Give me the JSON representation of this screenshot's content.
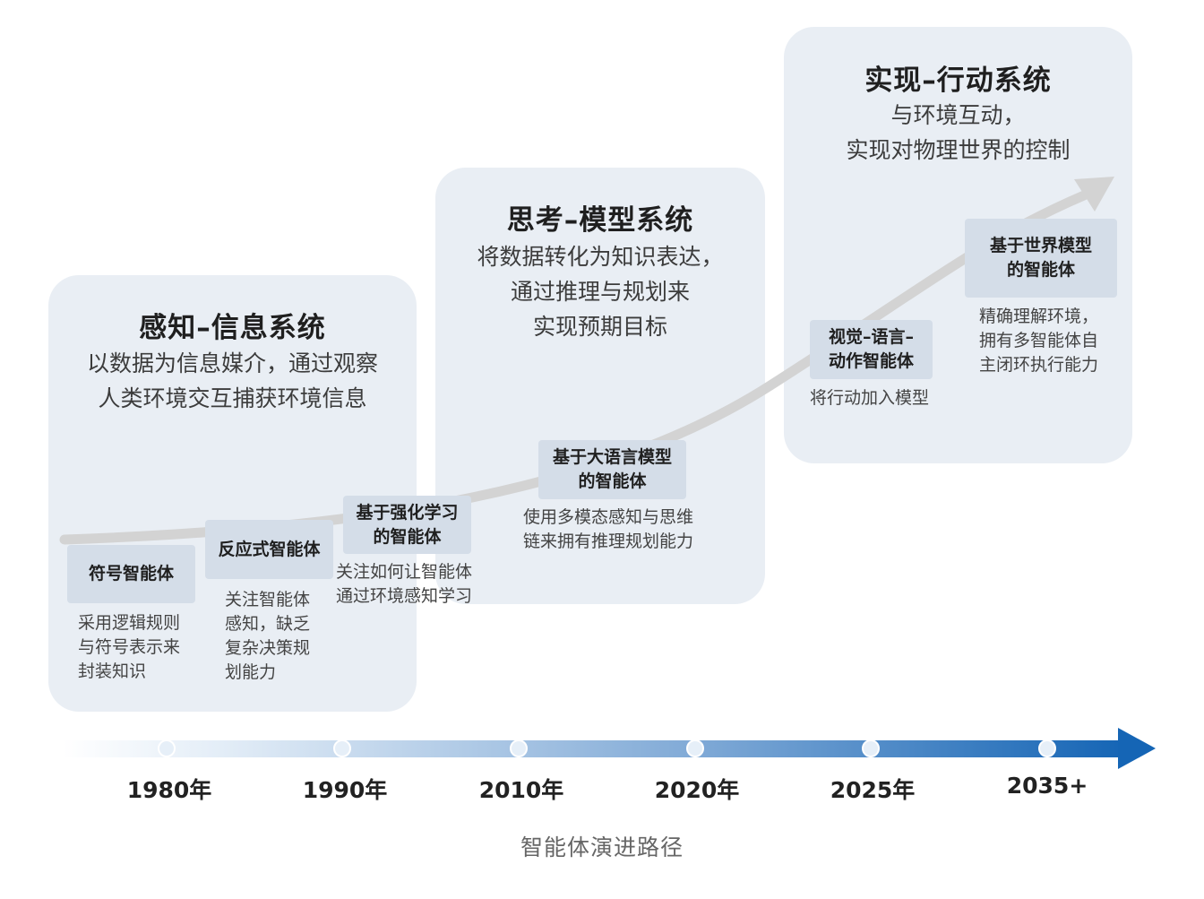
{
  "stages": [
    {
      "title": "感知–信息系统",
      "desc_lines": [
        "以数据为信息媒介，通过观察",
        "人类环境交互捕获环境信息"
      ]
    },
    {
      "title": "思考–模型系统",
      "desc_lines": [
        "将数据转化为知识表达，",
        "通过推理与规划来",
        "实现预期目标"
      ]
    },
    {
      "title": "实现–行动系统",
      "desc_lines": [
        "与环境互动，",
        "实现对物理世界的控制"
      ]
    }
  ],
  "agents": [
    {
      "name_lines": [
        "符号智能体"
      ],
      "desc_lines": [
        "采用逻辑规则",
        "与符号表示来",
        "封装知识"
      ]
    },
    {
      "name_lines": [
        "反应式智能体"
      ],
      "desc_lines": [
        "关注智能体",
        "感知，缺乏",
        "复杂决策规",
        "划能力"
      ]
    },
    {
      "name_lines": [
        "基于强化学习",
        "的智能体"
      ],
      "desc_lines": [
        "关注如何让智能体",
        "通过环境感知学习"
      ]
    },
    {
      "name_lines": [
        "基于大语言模型",
        "的智能体"
      ],
      "desc_lines": [
        "使用多模态感知与思维",
        "链来拥有推理规划能力"
      ]
    },
    {
      "name_lines": [
        "视觉–语言–",
        "动作智能体"
      ],
      "desc_lines": [
        "将行动加入模型"
      ]
    },
    {
      "name_lines": [
        "基于世界模型",
        "的智能体"
      ],
      "desc_lines": [
        "精确理解环境，",
        "拥有多智能体自",
        "主闭环执行能力"
      ]
    }
  ],
  "timeline": {
    "years": [
      "1980年",
      "1990年",
      "2010年",
      "2020年",
      "2025年",
      "2035+"
    ]
  },
  "caption": "智能体演进路径",
  "colors": {
    "panel_bg": "#e9eef4",
    "agent_box_bg": "#d4dde8",
    "curve": "#d3d3d3",
    "timeline_start": "#eef4fa",
    "timeline_end": "#1565b5"
  }
}
